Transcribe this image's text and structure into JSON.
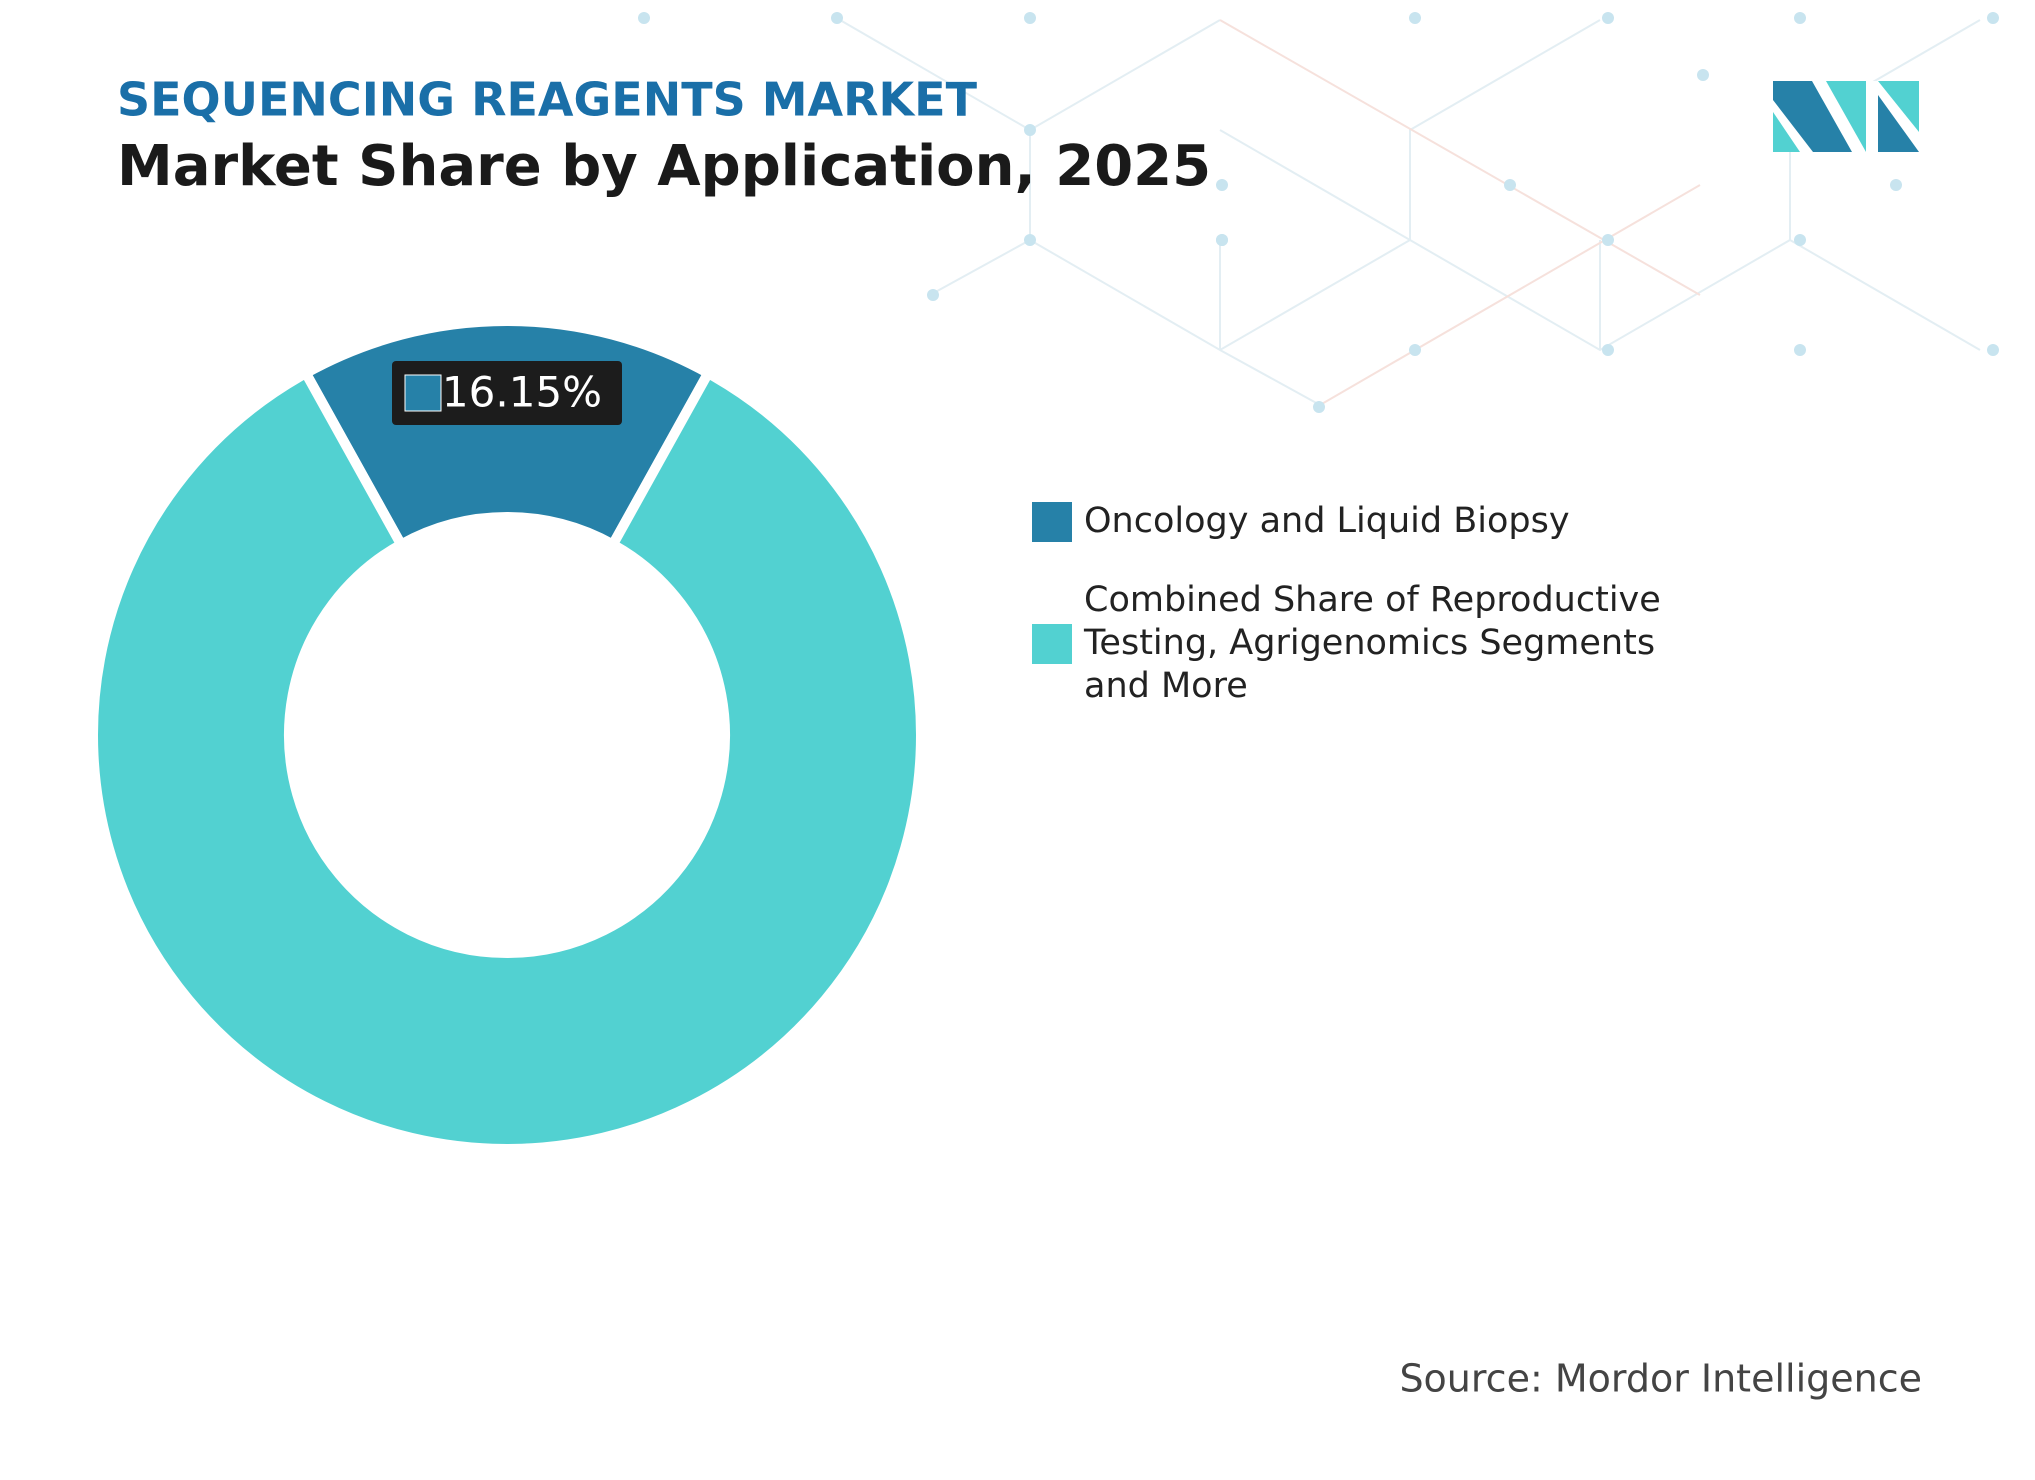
{
  "chart_data": {
    "type": "donut",
    "supertitle": "SEQUENCING REAGENTS MARKET",
    "title": "Market Share by Application, 2025",
    "categories": [
      "Oncology and Liquid Biopsy",
      "Combined Share of Reproductive Testing, Agrigenomics Segments and More"
    ],
    "values": [
      16.15,
      83.85
    ],
    "value_labels": [
      "16.15%",
      null
    ],
    "colors": [
      "#2681a8",
      "#52d1d1"
    ],
    "source": "Source: Mordor Intelligence"
  }
}
